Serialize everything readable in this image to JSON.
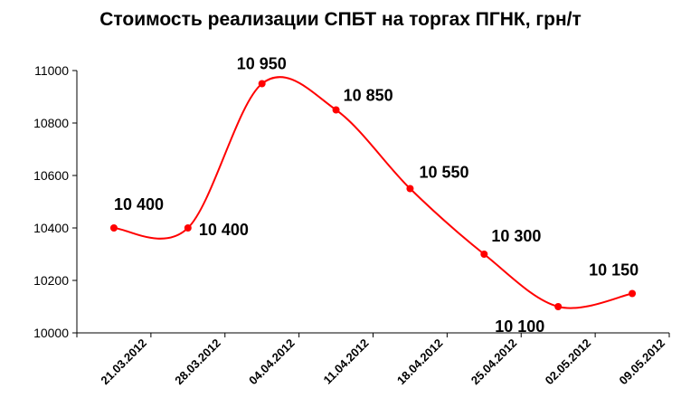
{
  "chart_data": {
    "type": "line",
    "title": "Стоимость реализации СПБТ на торгах ПГНК, грн/т",
    "xlabel": "",
    "ylabel": "",
    "categories": [
      "21.03.2012",
      "28.03.2012",
      "04.04.2012",
      "11.04.2012",
      "18.04.2012",
      "25.04.2012",
      "02.05.2012",
      "09.05.2012"
    ],
    "series": [
      {
        "values": [
          10400,
          10400,
          10950,
          10850,
          10550,
          10300,
          10100,
          10150
        ]
      }
    ],
    "data_labels": [
      "10 400",
      "10 400",
      "10 950",
      "10 850",
      "10 550",
      "10 300",
      "10 100",
      "10 150"
    ],
    "y_ticks": [
      "10000",
      "10200",
      "10400",
      "10600",
      "10800",
      "11000"
    ],
    "ylim": [
      10000,
      11000
    ],
    "grid": false,
    "legend": "none",
    "smooth": true,
    "line_color": "#ff0000",
    "marker_color": "#ff0000"
  }
}
